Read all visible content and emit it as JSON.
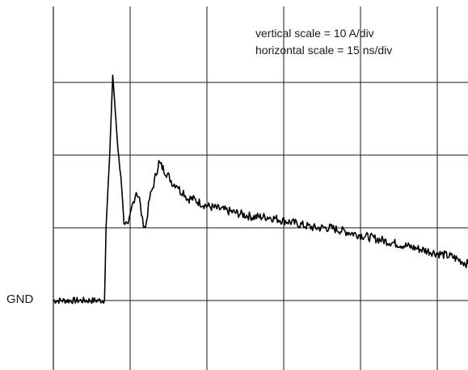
{
  "chart_data": {
    "type": "line",
    "title": "",
    "xlabel": "",
    "ylabel": "",
    "annotations": {
      "vertical_scale": "vertical scale = 10 A/div",
      "horizontal_scale": "horizontal scale = 15 ns/div"
    },
    "ground_label": "GND",
    "units": {
      "y": "A",
      "x": "ns"
    },
    "per_division": {
      "y": 10,
      "x": 15
    },
    "xlim": [
      0,
      81
    ],
    "ylim": [
      -10,
      40
    ],
    "grid": true,
    "trace_color": "#000000",
    "series": [
      {
        "x": [
          0,
          5,
          10,
          10.3,
          11,
          11.6,
          12.2,
          12.6,
          13.2,
          13.8,
          14.6,
          15.4,
          16.2,
          16.8,
          17.4,
          18,
          18.8,
          19.6,
          20.6,
          21.6,
          22.6,
          23.4,
          24.2,
          24.8,
          25.4,
          26.2,
          27.2,
          28.5,
          30,
          33,
          36,
          39,
          42,
          45,
          48,
          51,
          54,
          57,
          60,
          63,
          66,
          69,
          72,
          75,
          78,
          81
        ],
        "y": [
          0,
          0,
          0,
          10,
          20,
          31,
          25,
          21,
          17,
          11,
          10,
          13,
          15,
          14,
          11,
          10,
          14,
          16,
          19,
          18,
          17,
          16,
          16,
          15,
          15,
          14,
          14,
          13.5,
          13,
          12.5,
          12,
          11.5,
          11.5,
          11,
          10.5,
          10,
          10,
          9.5,
          9,
          8.5,
          8,
          7.5,
          7,
          6.5,
          6,
          5
        ]
      }
    ]
  }
}
